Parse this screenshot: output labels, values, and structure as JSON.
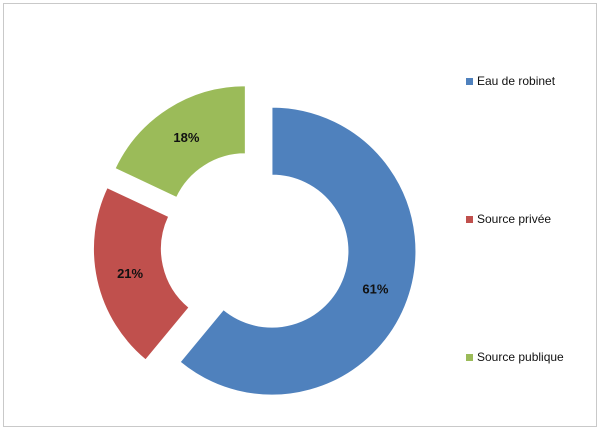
{
  "chart_data": {
    "type": "pie",
    "style": "exploded doughnut",
    "title": "",
    "categories": [
      "Eau de robinet",
      "Source privée",
      "Source publique"
    ],
    "values": [
      61,
      21,
      18
    ],
    "value_labels": [
      "61%",
      "21%",
      "18%"
    ],
    "colors": [
      "#4f81bd",
      "#c0504d",
      "#9bbb59"
    ],
    "legend": {
      "position": "right",
      "items": [
        {
          "label": "Eau de robinet",
          "color": "#4f81bd"
        },
        {
          "label": "Source privée",
          "color": "#c0504d"
        },
        {
          "label": "Source publique",
          "color": "#9bbb59"
        }
      ]
    }
  }
}
